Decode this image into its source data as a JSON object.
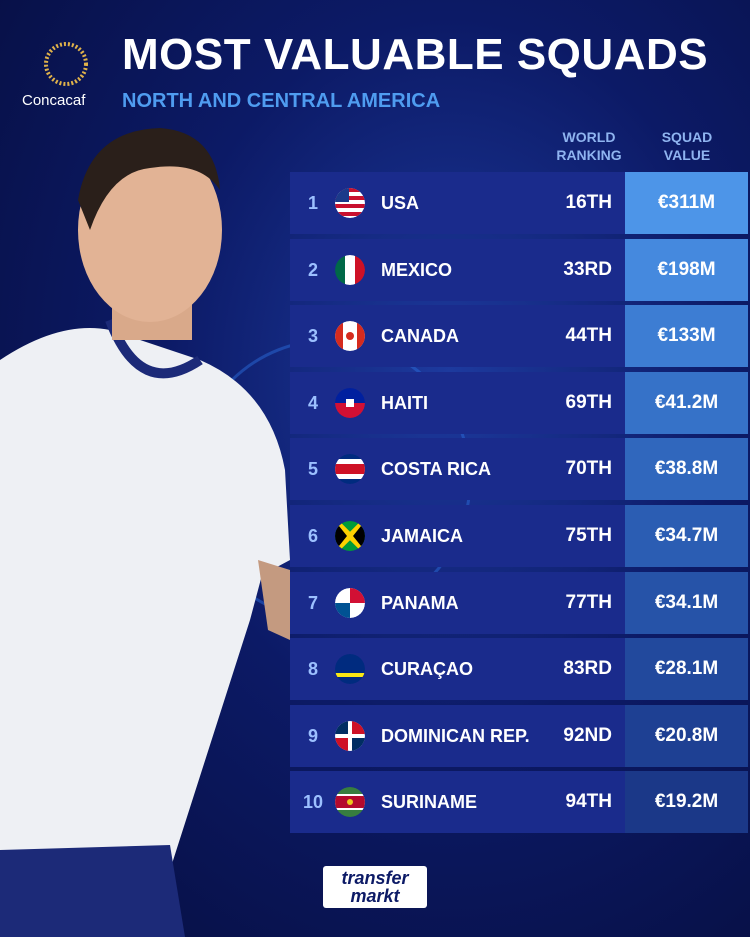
{
  "header": {
    "logo": "Concacaf",
    "title": "MOST VALUABLE SQUADS",
    "subtitle": "NORTH AND CENTRAL AMERICA"
  },
  "table": {
    "columns": [
      "WORLD RANKING",
      "SQUAD VALUE"
    ],
    "rows": [
      [
        "1",
        "USA",
        "16TH",
        "€311M"
      ],
      [
        "2",
        "MEXICO",
        "33RD",
        "€198M"
      ],
      [
        "3",
        "CANADA",
        "44TH",
        "€133M"
      ],
      [
        "4",
        "HAITI",
        "69TH",
        "€41.2M"
      ],
      [
        "5",
        "COSTA RICA",
        "70TH",
        "€38.8M"
      ],
      [
        "6",
        "JAMAICA",
        "75TH",
        "€34.7M"
      ],
      [
        "7",
        "PANAMA",
        "77TH",
        "€34.1M"
      ],
      [
        "8",
        "CURAÇAO",
        "83RD",
        "€28.1M"
      ],
      [
        "9",
        "DOMINICAN REP.",
        "92ND",
        "€20.8M"
      ],
      [
        "10",
        "SURINAME",
        "94TH",
        "€19.2M"
      ]
    ]
  },
  "footer": {
    "brand": [
      "transfer",
      "markt"
    ]
  }
}
